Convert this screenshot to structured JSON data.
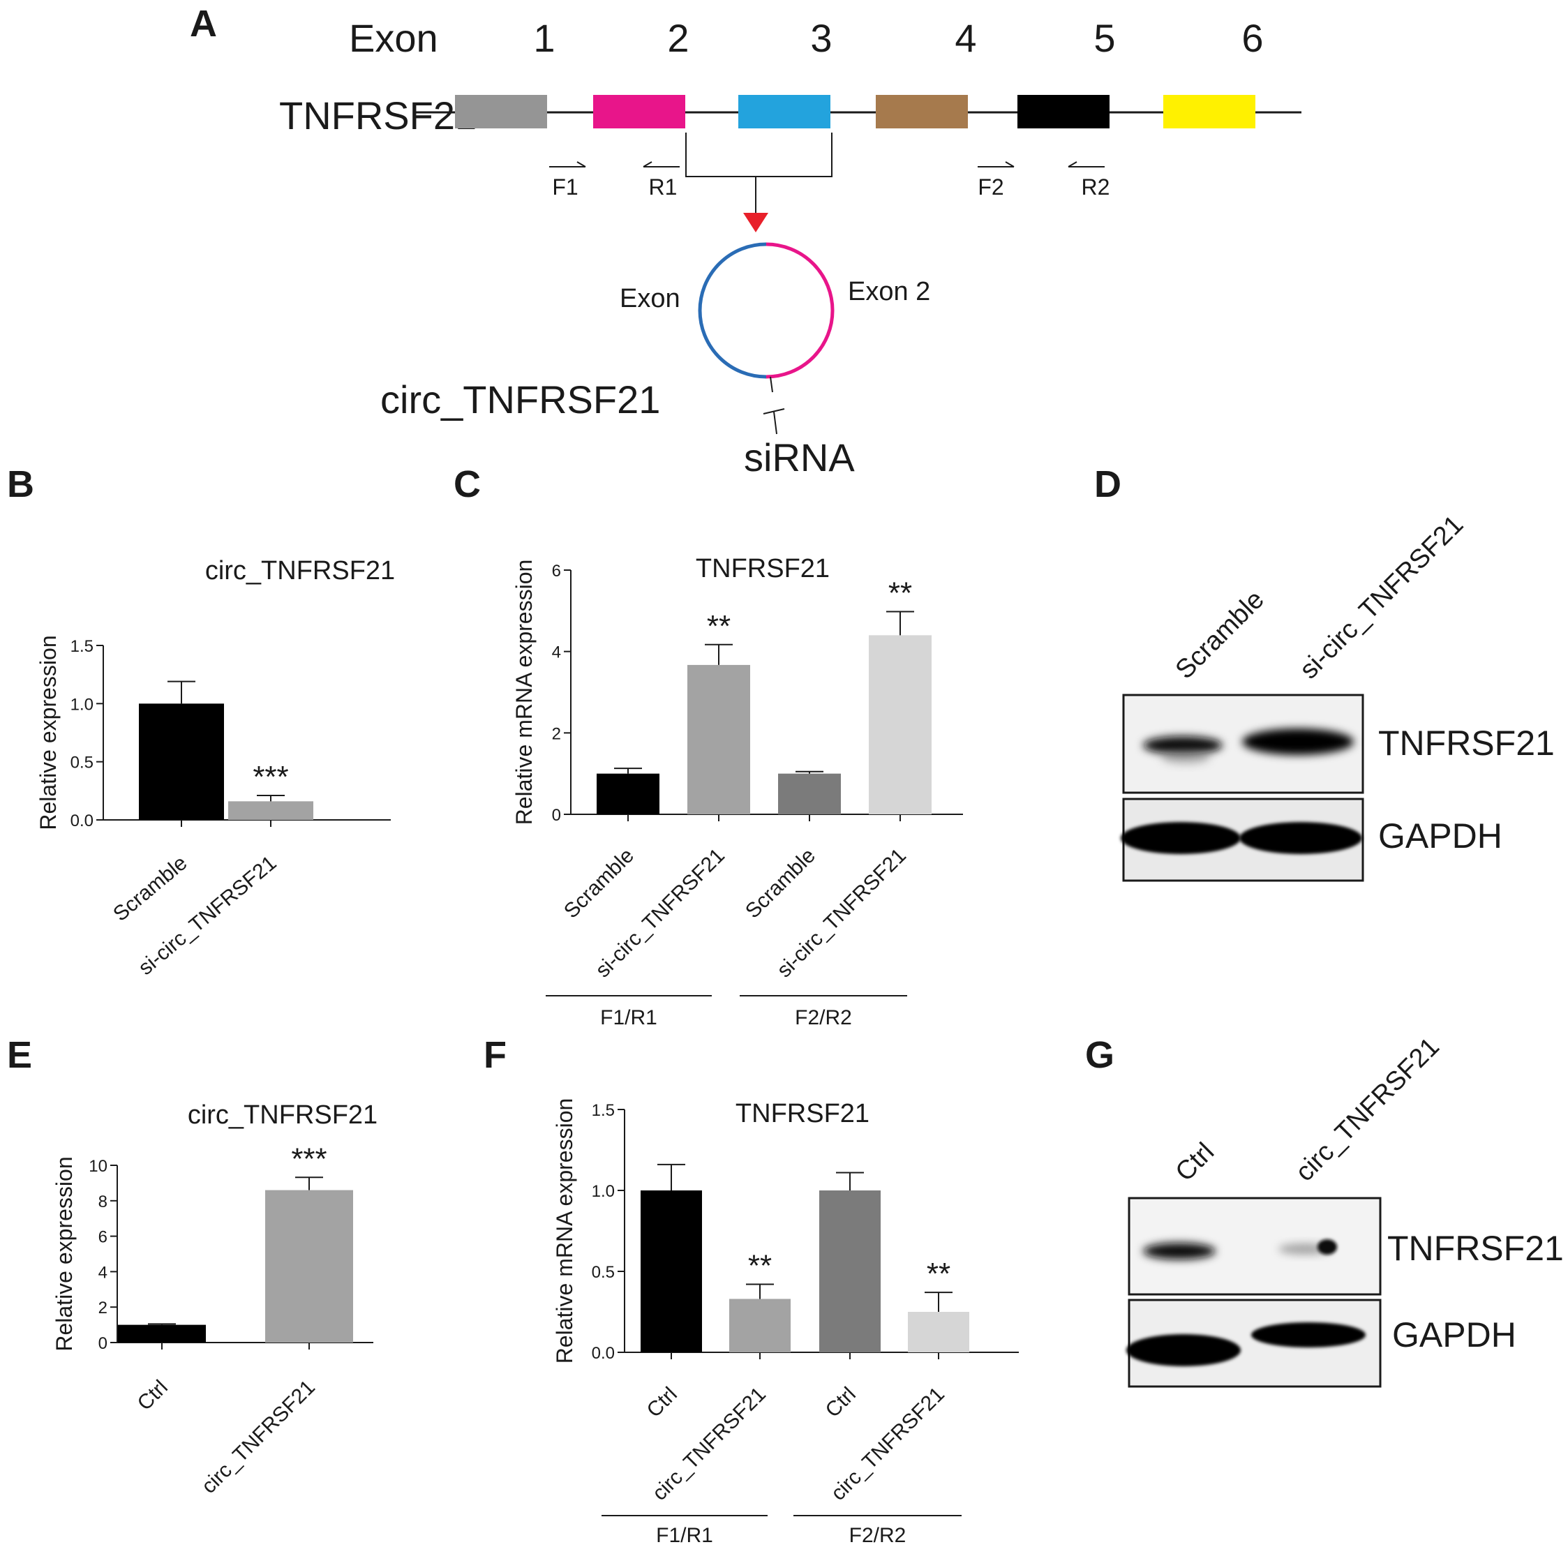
{
  "panel_labels": {
    "a": "A",
    "b": "B",
    "c": "C",
    "d": "D",
    "e": "E",
    "f": "F",
    "g": "G"
  },
  "diagram": {
    "exon_word": "Exon",
    "gene": "TNFRSF21",
    "exons": [
      {
        "label": "1",
        "color": "#959595"
      },
      {
        "label": "2",
        "color": "#e8158a"
      },
      {
        "label": "3",
        "color": "#23a3dd"
      },
      {
        "label": "4",
        "color": "#a67a4d"
      },
      {
        "label": "5",
        "color": "#000000"
      },
      {
        "label": "6",
        "color": "#fff100"
      }
    ],
    "primers": [
      {
        "label": "F1",
        "direction": "right"
      },
      {
        "label": "R1",
        "direction": "left"
      },
      {
        "label": "F2",
        "direction": "right"
      },
      {
        "label": "R2",
        "direction": "left"
      }
    ],
    "arrow_color": "#e8202a",
    "circ_left_label": "Exon",
    "circ_right_label": "Exon 2",
    "circ_name": "circ_TNFRSF21",
    "sirna_label": "siRNA"
  },
  "chart_data": [
    {
      "panel": "B",
      "type": "bar",
      "title": "circ_TNFRSF21",
      "ylabel": "Relative  expression",
      "categories": [
        "Scramble",
        "si-circ_TNFRSF21"
      ],
      "values": [
        1.0,
        0.16
      ],
      "errors": [
        0.19,
        0.05
      ],
      "colors": [
        "#000000",
        "#a3a3a3"
      ],
      "significance": [
        "",
        "***"
      ],
      "ylim": [
        0,
        1.5
      ],
      "yticks": [
        "0.0",
        "0.5",
        "1.0",
        "1.5"
      ]
    },
    {
      "panel": "C",
      "type": "bar",
      "title": "TNFRSF21",
      "ylabel": "Relative mRNA expression",
      "categories": [
        "Scramble",
        "si-circ_TNFRSF21",
        "Scramble",
        "si-circ_TNFRSF21"
      ],
      "values": [
        1.0,
        3.67,
        1.0,
        4.4
      ],
      "errors": [
        0.13,
        0.5,
        0.05,
        0.58
      ],
      "colors": [
        "#000000",
        "#a3a3a3",
        "#7b7b7b",
        "#d6d6d6"
      ],
      "significance": [
        "",
        "**",
        "",
        "**"
      ],
      "ylim": [
        0,
        6
      ],
      "yticks": [
        "0",
        "2",
        "4",
        "6"
      ],
      "groups": [
        "F1/R1",
        "F2/R2"
      ]
    },
    {
      "panel": "E",
      "type": "bar",
      "title": "circ_TNFRSF21",
      "ylabel": "Relative  expression",
      "categories": [
        "Ctrl",
        "circ_TNFRSF21"
      ],
      "values": [
        1.0,
        8.6
      ],
      "errors": [
        0.05,
        0.72
      ],
      "colors": [
        "#000000",
        "#a3a3a3"
      ],
      "significance": [
        "",
        "***"
      ],
      "ylim": [
        0,
        10
      ],
      "yticks": [
        "0",
        "2",
        "4",
        "6",
        "8",
        "10"
      ]
    },
    {
      "panel": "F",
      "type": "bar",
      "title": "TNFRSF21",
      "ylabel": "Relative mRNA expression",
      "categories": [
        "Ctrl",
        "circ_TNFRSF21",
        "Ctrl",
        "circ_TNFRSF21"
      ],
      "values": [
        1.0,
        0.33,
        1.0,
        0.25
      ],
      "errors": [
        0.16,
        0.09,
        0.11,
        0.12
      ],
      "colors": [
        "#000000",
        "#a3a3a3",
        "#7b7b7b",
        "#d6d6d6"
      ],
      "significance": [
        "",
        "**",
        "",
        "**"
      ],
      "ylim": [
        0,
        1.5
      ],
      "yticks": [
        "0.0",
        "0.5",
        "1.0",
        "1.5"
      ],
      "groups": [
        "F1/R1",
        "F2/R2"
      ]
    }
  ],
  "blots": [
    {
      "panel": "D",
      "lanes": [
        "Scramble",
        "si-circ_TNFRSF21"
      ],
      "rows": [
        "TNFRSF21",
        "GAPDH"
      ]
    },
    {
      "panel": "G",
      "lanes": [
        "Ctrl",
        "circ_TNFRSF21"
      ],
      "rows": [
        "TNFRSF21",
        "GAPDH"
      ]
    }
  ]
}
